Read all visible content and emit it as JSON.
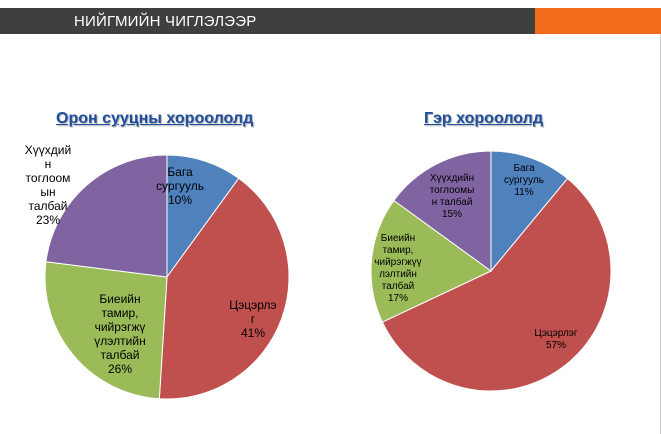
{
  "header": {
    "title": "НИЙГМИЙН ЧИГЛЭЛЭЭР",
    "bar_color": "#3f3f3f",
    "accent_color": "#f26a1b"
  },
  "chart_data": [
    {
      "type": "pie",
      "title": "Орон сууцны хороололд",
      "slices": [
        {
          "label": "Бага\nсургууль",
          "value": 10,
          "pct_label": "10%",
          "color": "#4f81bd"
        },
        {
          "label": "Цэцэрлэ\nг",
          "value": 41,
          "pct_label": "41%",
          "color": "#c0504d"
        },
        {
          "label": "Биеийн\nтамир,\nчийрэгжү\nүлэлтийн\nталбай",
          "value": 26,
          "pct_label": "26%",
          "color": "#9bbb59"
        },
        {
          "label": "Хүүхдий\nн\nтоглоом\nын\nталбай",
          "value": 23,
          "pct_label": "23%",
          "color": "#8064a2"
        }
      ]
    },
    {
      "type": "pie",
      "title": "Гэр хороололд",
      "slices": [
        {
          "label": "Бага\nсургууль",
          "value": 11,
          "pct_label": "11%",
          "color": "#4f81bd"
        },
        {
          "label": "Цэцэрлэг",
          "value": 57,
          "pct_label": "57%",
          "color": "#c0504d"
        },
        {
          "label": "Биеийн\nтамир,\nчийрэгжүү\nлэлтийн\nталбай",
          "value": 17,
          "pct_label": "17%",
          "color": "#9bbb59"
        },
        {
          "label": "Хүүхдийн\nтоглоомы\nн талбай",
          "value": 15,
          "pct_label": "15%",
          "color": "#8064a2"
        }
      ]
    }
  ]
}
